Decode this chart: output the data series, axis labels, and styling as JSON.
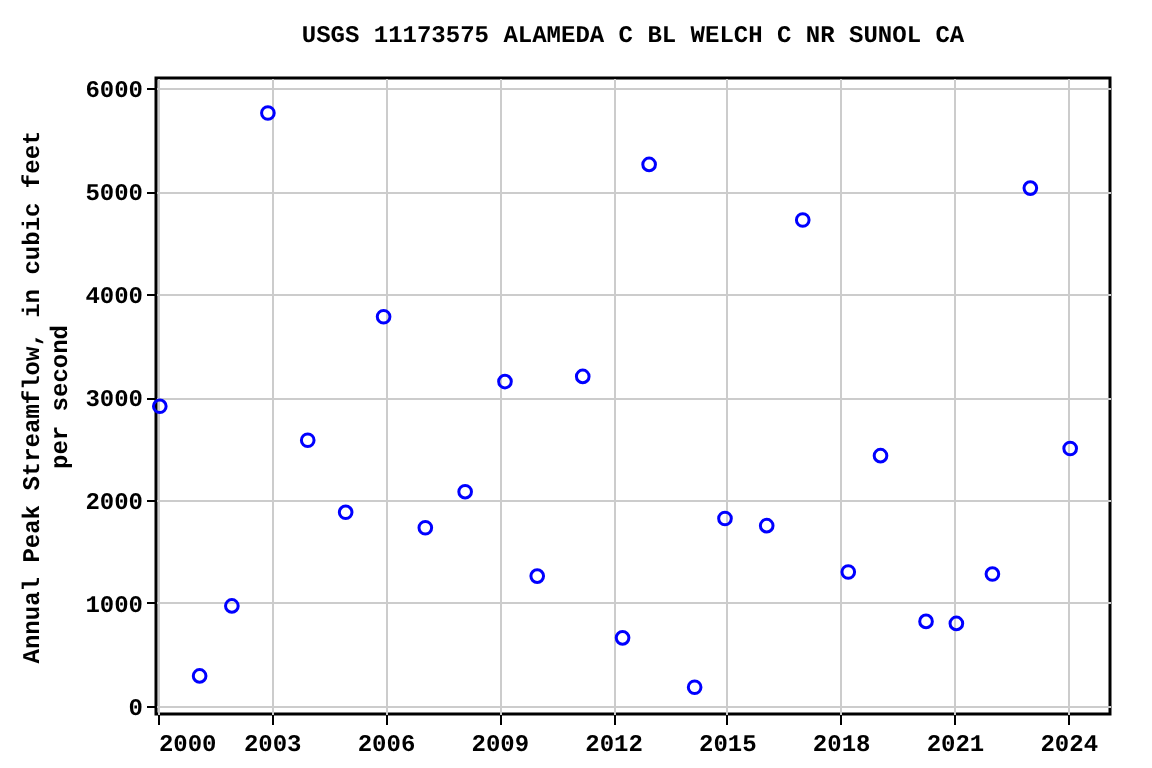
{
  "chart_data": {
    "type": "scatter",
    "title": "USGS 11173575 ALAMEDA C BL WELCH C NR SUNOL CA",
    "ylabel": "Annual Peak Streamflow, in cubic feet per second",
    "x": [
      2000.05,
      2001.1,
      2001.95,
      2002.9,
      2003.95,
      2004.95,
      2005.95,
      2007.05,
      2008.1,
      2009.15,
      2010.0,
      2011.2,
      2012.25,
      2012.95,
      2014.15,
      2014.95,
      2016.05,
      2017.0,
      2018.2,
      2019.05,
      2020.25,
      2021.05,
      2022.0,
      2023.0,
      2024.05
    ],
    "series": [
      {
        "color": "#0000ff",
        "values": [
          2910,
          290,
          970,
          5760,
          2580,
          1880,
          3780,
          1730,
          2080,
          3150,
          1260,
          3200,
          660,
          5260,
          180,
          1820,
          1750,
          4720,
          1300,
          2430,
          820,
          800,
          1280,
          5030,
          2500
        ]
      }
    ],
    "xlim": [
      1999.95,
      2025.1
    ],
    "xticks": [
      2000,
      2003,
      2006,
      2009,
      2012,
      2015,
      2018,
      2021,
      2024
    ],
    "ylim": [
      -80,
      6100
    ],
    "yticks": [
      0,
      1000,
      2000,
      3000,
      4000,
      5000,
      6000
    ],
    "grid": true,
    "marker": "circle"
  }
}
